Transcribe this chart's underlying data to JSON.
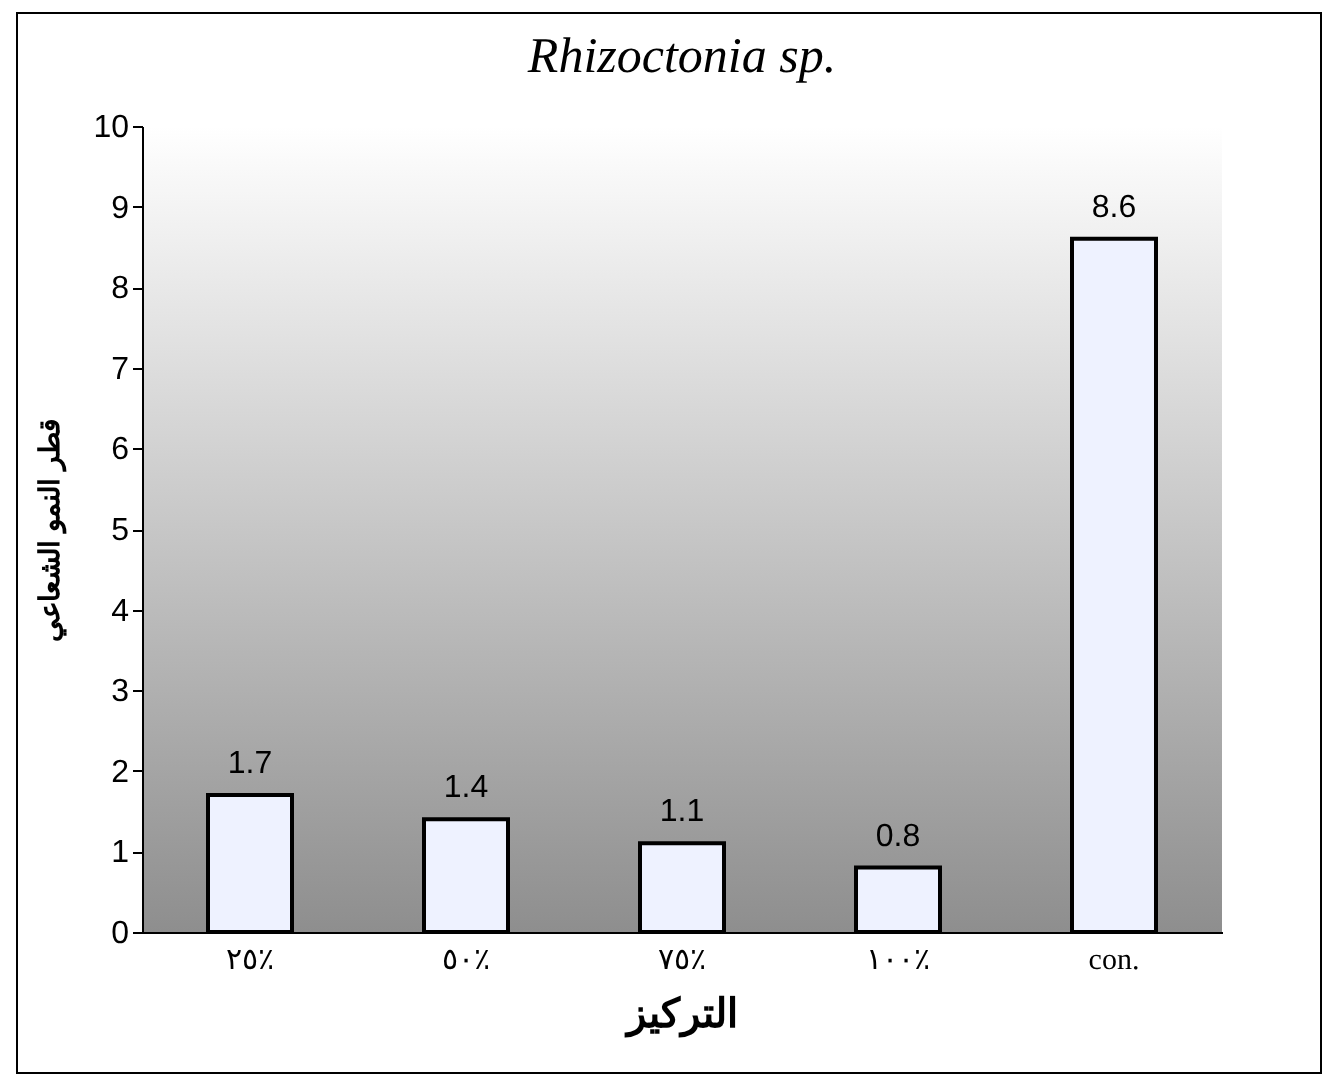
{
  "chart_data": {
    "type": "bar",
    "title": "Rhizoctonia sp.",
    "xlabel": "التركيز",
    "ylabel": "قطر النمو الشعاعي",
    "categories": [
      "٢٥٪",
      "٥٠٪",
      "٧٥٪",
      "١٠٠٪",
      "con."
    ],
    "values": [
      1.7,
      1.4,
      1.1,
      0.8,
      8.6
    ],
    "color": "#eef2ff",
    "ylim": [
      0,
      10
    ],
    "yticks": [
      0,
      1,
      2,
      3,
      4,
      5,
      6,
      7,
      8,
      9,
      10
    ],
    "grid": false,
    "data_labels": true
  }
}
